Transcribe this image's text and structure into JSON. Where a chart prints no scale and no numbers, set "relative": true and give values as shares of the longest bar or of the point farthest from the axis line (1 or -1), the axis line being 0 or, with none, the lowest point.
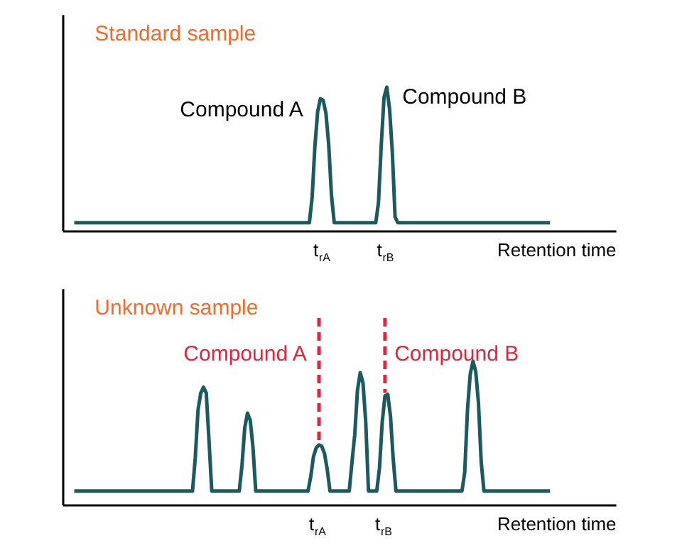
{
  "chart_data": [
    {
      "type": "line",
      "title": "Standard sample",
      "xlabel": "Retention time",
      "relative": true,
      "grid": false,
      "tick_labels": "x",
      "categories": [
        null,
        null,
        null,
        null,
        null,
        null,
        null,
        null,
        null,
        null,
        null,
        null,
        null,
        null,
        null,
        null,
        null,
        null,
        null,
        null,
        null,
        null,
        null,
        null,
        null,
        null,
        null,
        null,
        null,
        null,
        null,
        null,
        null,
        null,
        null,
        null,
        null,
        null,
        null,
        null,
        null,
        null,
        null,
        null,
        null,
        null,
        null,
        null,
        null,
        null,
        null,
        null,
        null,
        null,
        null,
        null,
        null,
        null,
        null,
        null,
        null,
        null,
        null,
        null,
        null,
        null,
        null,
        null,
        null,
        null,
        null,
        null,
        null,
        null,
        null,
        null,
        null,
        null,
        null,
        null,
        null,
        null,
        null,
        null,
        null,
        null,
        null,
        null,
        null,
        null,
        "t$_{rA}$",
        null,
        null,
        null,
        null,
        null,
        null,
        null,
        null,
        null,
        null,
        null,
        null,
        null,
        null,
        null,
        null,
        null,
        null,
        null,
        null,
        null,
        null,
        "t$_{rB}$",
        null,
        null,
        null,
        null,
        null,
        null,
        null,
        null,
        null,
        null,
        null,
        null,
        null,
        null,
        null,
        null,
        null,
        null,
        null,
        null,
        null,
        null,
        null,
        null,
        null,
        null,
        null,
        null,
        null,
        null,
        null,
        null,
        null,
        null,
        null,
        null,
        null,
        null,
        null,
        null,
        null,
        null,
        null,
        null,
        null,
        null,
        null,
        null,
        null,
        null,
        null,
        null,
        null,
        null,
        null,
        null,
        null,
        null,
        null
      ],
      "series": [
        {
          "color": "#1d5a60",
          "values": [
            0.06,
            0.06,
            0.06,
            0.06,
            0.06,
            0.06,
            0.06,
            0.06,
            0.06,
            0.06,
            0.06,
            0.06,
            0.06,
            0.06,
            0.06,
            0.06,
            0.06,
            0.06,
            0.06,
            0.06,
            0.06,
            0.06,
            0.06,
            0.06,
            0.06,
            0.06,
            0.06,
            0.06,
            0.06,
            0.06,
            0.06,
            0.06,
            0.06,
            0.06,
            0.06,
            0.06,
            0.06,
            0.06,
            0.06,
            0.06,
            0.06,
            0.06,
            0.06,
            0.06,
            0.06,
            0.06,
            0.06,
            0.06,
            0.06,
            0.06,
            0.06,
            0.06,
            0.06,
            0.06,
            0.06,
            0.06,
            0.06,
            0.06,
            0.06,
            0.06,
            0.06,
            0.06,
            0.06,
            0.06,
            0.06,
            0.06,
            0.06,
            0.06,
            0.06,
            0.06,
            0.06,
            0.06,
            0.06,
            0.06,
            0.06,
            0.06,
            0.06,
            0.06,
            0.06,
            0.06,
            0.06,
            0.06,
            0.06,
            0.06,
            0.06,
            0.06,
            0.235,
            0.59,
            0.83,
            0.92,
            0.91,
            0.82,
            0.6,
            0.25,
            0.06,
            0.06,
            0.06,
            0.06,
            0.06,
            0.06,
            0.06,
            0.06,
            0.06,
            0.06,
            0.06,
            0.06,
            0.06,
            0.06,
            0.06,
            0.06,
            0.2,
            0.6,
            0.93,
            1,
            0.85,
            0.55,
            0.1,
            0.06,
            0.06,
            0.06,
            0.06,
            0.06,
            0.06,
            0.06,
            0.06,
            0.06,
            0.06,
            0.06,
            0.06,
            0.06,
            0.06,
            0.06,
            0.06,
            0.06,
            0.06,
            0.06,
            0.06,
            0.06,
            0.06,
            0.06,
            0.06,
            0.06,
            0.06,
            0.06,
            0.06,
            0.06,
            0.06,
            0.06,
            0.06,
            0.06,
            0.06,
            0.06,
            0.06,
            0.06,
            0.06,
            0.06,
            0.06,
            0.06,
            0.06,
            0.06,
            0.06,
            0.06,
            0.06,
            0.06,
            0.06,
            0.06,
            0.06,
            0.06,
            0.06,
            0.06,
            0.06,
            0.06,
            0.06
          ]
        }
      ],
      "annotations": [
        {
          "text": "Compound A",
          "x": "t$_{rA}$",
          "y": 0.91
        },
        {
          "text": "Compound B",
          "x": "t$_{rB}$",
          "y": 1
        }
      ]
    },
    {
      "type": "line",
      "title": "Unknown sample",
      "xlabel": "Retention time",
      "relative": true,
      "grid": false,
      "tick_labels": "x",
      "categories": [
        null,
        null,
        null,
        null,
        null,
        null,
        null,
        null,
        null,
        null,
        null,
        null,
        null,
        null,
        null,
        null,
        null,
        null,
        null,
        null,
        null,
        null,
        null,
        null,
        null,
        null,
        null,
        null,
        null,
        null,
        null,
        null,
        null,
        null,
        null,
        null,
        null,
        null,
        null,
        null,
        null,
        null,
        null,
        null,
        null,
        null,
        null,
        null,
        null,
        null,
        null,
        null,
        null,
        null,
        null,
        null,
        null,
        null,
        null,
        null,
        null,
        null,
        null,
        null,
        null,
        null,
        null,
        null,
        null,
        null,
        null,
        null,
        null,
        null,
        null,
        null,
        null,
        null,
        null,
        null,
        null,
        null,
        null,
        null,
        null,
        null,
        null,
        null,
        null,
        "t$_{rA}$",
        null,
        null,
        null,
        null,
        null,
        null,
        null,
        null,
        null,
        null,
        null,
        null,
        null,
        null,
        null,
        null,
        null,
        null,
        null,
        null,
        null,
        null,
        null,
        "t$_{rB}$",
        null,
        null,
        null,
        null,
        null,
        null,
        null,
        null,
        null,
        null,
        null,
        null,
        null,
        null,
        null,
        null,
        null,
        null,
        null,
        null,
        null,
        null,
        null,
        null,
        null,
        null,
        null,
        null,
        null,
        null,
        null,
        null,
        null,
        null,
        null,
        null,
        null,
        null,
        null,
        null,
        null,
        null,
        null,
        null,
        null,
        null,
        null,
        null,
        null,
        null,
        null,
        null,
        null,
        null,
        null,
        null,
        null,
        null,
        null,
        null
      ],
      "series": [
        {
          "color": "#1d5a60",
          "values": [
            0.1,
            0.1,
            0.1,
            0.1,
            0.1,
            0.1,
            0.1,
            0.1,
            0.1,
            0.1,
            0.1,
            0.1,
            0.1,
            0.1,
            0.1,
            0.1,
            0.1,
            0.1,
            0.1,
            0.1,
            0.1,
            0.1,
            0.1,
            0.1,
            0.1,
            0.1,
            0.1,
            0.1,
            0.1,
            0.1,
            0.1,
            0.1,
            0.1,
            0.1,
            0.1,
            0.1,
            0.1,
            0.1,
            0.1,
            0.1,
            0.1,
            0.1,
            0.1,
            0.1,
            0.33,
            0.66,
            0.78,
            0.82,
            0.78,
            0.45,
            0.1,
            0.1,
            0.1,
            0.1,
            0.1,
            0.1,
            0.1,
            0.1,
            0.1,
            0.1,
            0.1,
            0.28,
            0.54,
            0.64,
            0.59,
            0.4,
            0.1,
            0.1,
            0.1,
            0.1,
            0.1,
            0.1,
            0.1,
            0.1,
            0.1,
            0.1,
            0.1,
            0.1,
            0.1,
            0.1,
            0.1,
            0.1,
            0.1,
            0.1,
            0.1,
            0.1,
            0.2,
            0.34,
            0.4,
            0.42,
            0.41,
            0.36,
            0.25,
            0.1,
            0.1,
            0.1,
            0.1,
            0.1,
            0.1,
            0.1,
            0.1,
            0.3,
            0.49,
            0.8,
            0.92,
            0.85,
            0.58,
            0.1,
            0.1,
            0.1,
            0.1,
            0.26,
            0.58,
            0.76,
            0.77,
            0.62,
            0.32,
            0.1,
            0.1,
            0.1,
            0.1,
            0.1,
            0.1,
            0.1,
            0.1,
            0.1,
            0.1,
            0.1,
            0.1,
            0.1,
            0.1,
            0.1,
            0.1,
            0.1,
            0.1,
            0.1,
            0.1,
            0.1,
            0.1,
            0.1,
            0.1,
            0.1,
            0.23,
            0.66,
            0.91,
            1,
            0.93,
            0.71,
            0.3,
            0.1,
            0.1,
            0.1,
            0.1,
            0.1,
            0.1,
            0.1,
            0.1,
            0.1,
            0.1,
            0.1,
            0.1,
            0.1,
            0.1,
            0.1,
            0.1,
            0.1,
            0.1,
            0.1,
            0.1,
            0.1,
            0.1,
            0.1,
            0.1,
            0.1
          ]
        }
      ],
      "ref_lines": [
        {
          "axis": "x",
          "value": "t$_{rA}$",
          "label": "Compound A",
          "color": "#e0243c",
          "line_style": "dashed"
        },
        {
          "axis": "x",
          "value": "t$_{rB}$",
          "label": "Compound B",
          "color": "#e0243c",
          "line_style": "dashed"
        }
      ]
    }
  ]
}
